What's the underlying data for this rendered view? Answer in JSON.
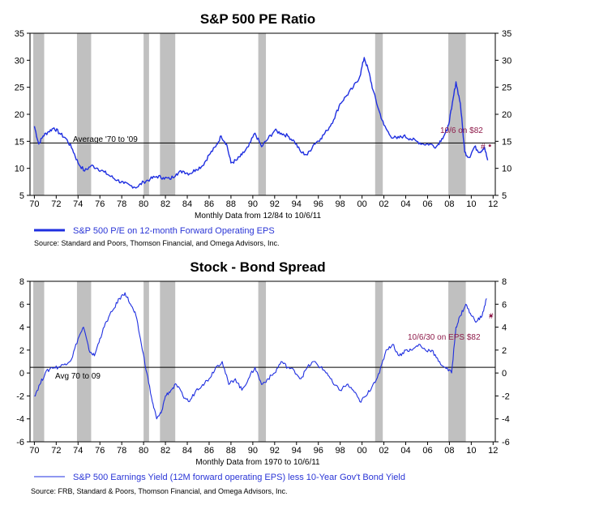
{
  "colors": {
    "series": "#1f2fe0",
    "recession": "#c0c0c0",
    "highlight": "#8e1b4a",
    "axis": "#000000"
  },
  "chart_data": [
    {
      "type": "line",
      "title": "S&P 500 PE Ratio",
      "xlabel": "Monthly Data from 12/84 to 10/6/11",
      "x_tick_labels": [
        "70",
        "72",
        "74",
        "76",
        "78",
        "80",
        "82",
        "84",
        "86",
        "88",
        "90",
        "92",
        "94",
        "96",
        "98",
        "00",
        "02",
        "04",
        "06",
        "08",
        "10",
        "12"
      ],
      "x_tick_years": [
        1970,
        1972,
        1974,
        1976,
        1978,
        1980,
        1982,
        1984,
        1986,
        1988,
        1990,
        1992,
        1994,
        1996,
        1998,
        2000,
        2002,
        2004,
        2006,
        2008,
        2010,
        2012
      ],
      "xlim": [
        1969.6,
        2012.2
      ],
      "ylim": [
        5,
        35
      ],
      "y_ticks": [
        5,
        10,
        15,
        20,
        25,
        30,
        35
      ],
      "legend": "S&P 500 P/E on 12-month Forward Operating EPS",
      "source": "Source: Standard and Poors, Thomson Financial, and Omega Advisors, Inc.",
      "average_label": "Average '70 to '09",
      "average_value": 14.7,
      "point_label": "10/6 on $82",
      "point_marker": "#",
      "point": {
        "x": 2011.7,
        "y": 14.2
      },
      "recessions": [
        [
          1969.9,
          1970.9
        ],
        [
          1973.9,
          1975.2
        ],
        [
          1980.0,
          1980.5
        ],
        [
          1981.5,
          1982.9
        ],
        [
          1990.5,
          1991.2
        ],
        [
          2001.2,
          2001.9
        ],
        [
          2007.9,
          2009.5
        ]
      ],
      "series": [
        {
          "name": "S&P 500 P/E on 12-month Forward Operating EPS",
          "x": [
            1970.0,
            1970.4,
            1970.8,
            1971.3,
            1971.8,
            1972.3,
            1972.9,
            1973.5,
            1974.0,
            1974.6,
            1975.2,
            1975.8,
            1976.4,
            1977.0,
            1977.6,
            1978.2,
            1978.8,
            1979.4,
            1980.0,
            1980.6,
            1981.2,
            1981.8,
            1982.4,
            1983.0,
            1983.6,
            1984.2,
            1984.8,
            1985.4,
            1986.0,
            1986.6,
            1987.1,
            1987.6,
            1988.0,
            1988.5,
            1989.0,
            1989.6,
            1990.2,
            1990.8,
            1991.4,
            1992.0,
            1992.6,
            1993.2,
            1993.8,
            1994.4,
            1995.0,
            1995.6,
            1996.2,
            1996.8,
            1997.4,
            1998.0,
            1998.6,
            1999.2,
            1999.8,
            2000.2,
            2000.6,
            2001.0,
            2001.5,
            2002.0,
            2002.6,
            2003.2,
            2003.8,
            2004.4,
            2005.0,
            2005.6,
            2006.2,
            2006.8,
            2007.3,
            2007.8,
            2008.2,
            2008.6,
            2009.0,
            2009.4,
            2009.8,
            2010.3,
            2010.8,
            2011.2,
            2011.5
          ],
          "values": [
            17.8,
            14.5,
            16.0,
            16.8,
            17.5,
            16.5,
            15.5,
            13.5,
            11.0,
            9.5,
            10.5,
            10.0,
            9.3,
            8.5,
            7.8,
            7.2,
            6.8,
            6.5,
            7.5,
            8.0,
            8.5,
            8.3,
            8.0,
            9.0,
            9.5,
            9.0,
            9.8,
            10.5,
            12.5,
            14.0,
            16.0,
            14.5,
            11.0,
            11.5,
            12.5,
            14.0,
            16.5,
            14.0,
            15.5,
            17.0,
            16.5,
            16.0,
            15.0,
            13.0,
            12.5,
            14.5,
            15.5,
            17.0,
            19.0,
            22.0,
            23.5,
            25.0,
            27.0,
            30.5,
            28.0,
            24.5,
            21.0,
            18.0,
            16.0,
            15.5,
            16.0,
            15.5,
            15.0,
            14.5,
            14.5,
            14.0,
            15.5,
            17.0,
            21.0,
            26.0,
            22.0,
            13.0,
            12.0,
            14.0,
            13.0,
            14.0,
            11.5
          ]
        }
      ]
    },
    {
      "type": "line",
      "title": "Stock - Bond Spread",
      "xlabel": "Monthly Data from 1970 to 10/6/11",
      "x_tick_labels": [
        "70",
        "72",
        "74",
        "76",
        "78",
        "80",
        "82",
        "84",
        "86",
        "88",
        "90",
        "92",
        "94",
        "96",
        "98",
        "00",
        "02",
        "04",
        "06",
        "08",
        "10",
        "12"
      ],
      "x_tick_years": [
        1970,
        1972,
        1974,
        1976,
        1978,
        1980,
        1982,
        1984,
        1986,
        1988,
        1990,
        1992,
        1994,
        1996,
        1998,
        2000,
        2002,
        2004,
        2006,
        2008,
        2010,
        2012
      ],
      "xlim": [
        1969.6,
        2012.2
      ],
      "ylim": [
        -6,
        8
      ],
      "y_ticks": [
        -6,
        -4,
        -2,
        0,
        2,
        4,
        6,
        8
      ],
      "legend": "S&P 500 Earnings Yield (12M forward operating EPS) less 10-Year Gov't Bond Yield",
      "source": "Source: FRB, Standard & Poors, Thomson Financial, and Omega Advisors, Inc.",
      "average_label": "Avg 70 to 09",
      "average_value": 0.5,
      "point_label": "10/6/30 on EPS $82",
      "point_marker": "#",
      "point": {
        "x": 2011.8,
        "y": 5.0
      },
      "recessions": [
        [
          1969.9,
          1970.9
        ],
        [
          1973.9,
          1975.2
        ],
        [
          1980.0,
          1980.5
        ],
        [
          1981.5,
          1982.9
        ],
        [
          1990.5,
          1991.2
        ],
        [
          2001.2,
          2001.9
        ],
        [
          2007.9,
          2009.5
        ]
      ],
      "series": [
        {
          "name": "S&P 500 Earnings Yield (12M forward operating EPS) less 10-Year Gov't Bond Yield",
          "x": [
            1970.0,
            1970.5,
            1971.0,
            1971.6,
            1972.2,
            1972.8,
            1973.4,
            1974.0,
            1974.5,
            1975.0,
            1975.5,
            1976.0,
            1976.6,
            1977.2,
            1977.8,
            1978.3,
            1978.8,
            1979.3,
            1979.8,
            1980.3,
            1980.8,
            1981.2,
            1981.6,
            1982.0,
            1982.5,
            1983.0,
            1983.6,
            1984.2,
            1984.8,
            1985.4,
            1986.0,
            1986.6,
            1987.2,
            1987.8,
            1988.4,
            1989.0,
            1989.6,
            1990.2,
            1990.8,
            1991.4,
            1992.0,
            1992.6,
            1993.2,
            1993.8,
            1994.4,
            1995.0,
            1995.6,
            1996.2,
            1996.8,
            1997.4,
            1998.0,
            1998.6,
            1999.2,
            1999.8,
            2000.4,
            2001.0,
            2001.6,
            2002.2,
            2002.8,
            2003.4,
            2004.0,
            2004.6,
            2005.2,
            2005.8,
            2006.4,
            2007.0,
            2007.6,
            2008.2,
            2008.6,
            2009.0,
            2009.5,
            2010.0,
            2010.5,
            2011.0,
            2011.4
          ],
          "values": [
            -2.0,
            -1.0,
            0.0,
            0.5,
            0.5,
            0.8,
            1.2,
            3.0,
            4.0,
            2.0,
            1.5,
            3.0,
            4.5,
            5.5,
            6.5,
            7.0,
            6.0,
            5.0,
            2.5,
            0.0,
            -2.5,
            -4.0,
            -3.5,
            -2.0,
            -1.5,
            -1.0,
            -2.0,
            -2.5,
            -1.5,
            -1.0,
            -0.5,
            0.5,
            1.0,
            -1.0,
            -0.5,
            -1.5,
            -0.5,
            0.5,
            -1.0,
            -0.5,
            0.0,
            1.0,
            0.5,
            0.2,
            -0.5,
            0.5,
            1.0,
            0.5,
            0.0,
            -1.0,
            -1.5,
            -1.0,
            -1.5,
            -2.5,
            -2.0,
            -1.0,
            0.0,
            2.0,
            2.5,
            1.5,
            2.0,
            2.0,
            2.5,
            2.0,
            2.0,
            1.0,
            0.5,
            0.0,
            4.0,
            5.0,
            6.0,
            5.0,
            4.5,
            5.0,
            6.5
          ]
        }
      ]
    }
  ]
}
